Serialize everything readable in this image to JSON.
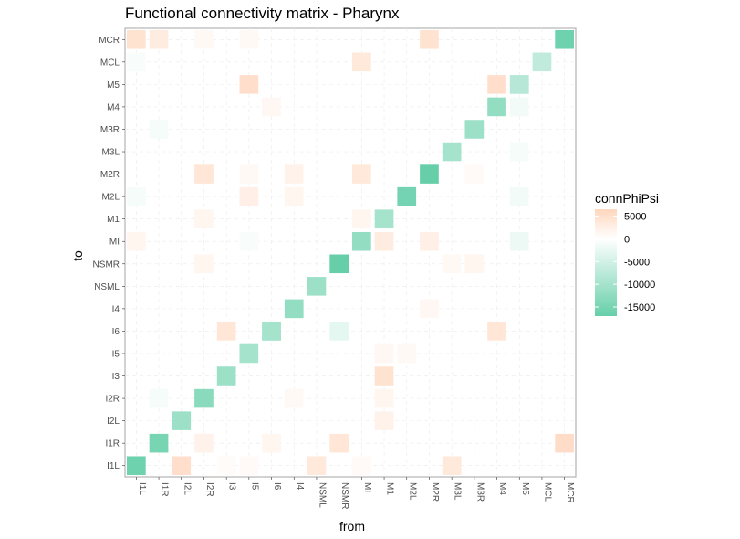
{
  "chart_data": {
    "type": "heatmap",
    "title": "Functional connectivity matrix - Pharynx",
    "xlabel": "from",
    "ylabel": "to",
    "x_categories": [
      "I1L",
      "I1R",
      "I2L",
      "I2R",
      "I3",
      "I5",
      "I6",
      "I4",
      "NSML",
      "NSMR",
      "MI",
      "M1",
      "M2L",
      "M2R",
      "M3L",
      "M3R",
      "M4",
      "M5",
      "MCL",
      "MCR"
    ],
    "y_categories": [
      "I1L",
      "I1R",
      "I2L",
      "I2R",
      "I3",
      "I5",
      "I6",
      "I4",
      "NSML",
      "NSMR",
      "MI",
      "M1",
      "M2L",
      "M2R",
      "M3L",
      "M3R",
      "M4",
      "M5",
      "MCL",
      "MCR"
    ],
    "color_scale": {
      "name": "connPhiPsi",
      "range": [
        -17000,
        6500
      ],
      "ticks": [
        5000,
        0,
        -5000,
        -10000,
        -15000
      ],
      "tick_labels": [
        "5000",
        "0",
        "-5000",
        "-10000",
        "-15000"
      ],
      "colors": {
        "high": "#ffd6bd",
        "mid": "#ffffff",
        "low": "#66cfaa"
      }
    },
    "cells": [
      {
        "x": "I1L",
        "y": "I1L",
        "v": -16000
      },
      {
        "x": "I1R",
        "y": "I1R",
        "v": -15000
      },
      {
        "x": "I2L",
        "y": "I2L",
        "v": -11000
      },
      {
        "x": "I2R",
        "y": "I2R",
        "v": -13000
      },
      {
        "x": "I3",
        "y": "I3",
        "v": -11000
      },
      {
        "x": "I5",
        "y": "I5",
        "v": -10000
      },
      {
        "x": "I6",
        "y": "I6",
        "v": -10000
      },
      {
        "x": "I4",
        "y": "I4",
        "v": -12000
      },
      {
        "x": "NSML",
        "y": "NSML",
        "v": -11000
      },
      {
        "x": "NSMR",
        "y": "NSMR",
        "v": -17000
      },
      {
        "x": "MI",
        "y": "MI",
        "v": -12000
      },
      {
        "x": "M1",
        "y": "M1",
        "v": -10000
      },
      {
        "x": "M2L",
        "y": "M2L",
        "v": -15500
      },
      {
        "x": "M2R",
        "y": "M2R",
        "v": -17000
      },
      {
        "x": "M3L",
        "y": "M3L",
        "v": -10000
      },
      {
        "x": "M3R",
        "y": "M3R",
        "v": -11000
      },
      {
        "x": "M4",
        "y": "M4",
        "v": -12000
      },
      {
        "x": "M5",
        "y": "M5",
        "v": -8000
      },
      {
        "x": "MCL",
        "y": "MCL",
        "v": -7000
      },
      {
        "x": "MCR",
        "y": "MCR",
        "v": -16000
      },
      {
        "x": "I2L",
        "y": "I1L",
        "v": 5000
      },
      {
        "x": "NSML",
        "y": "I1L",
        "v": 3500
      },
      {
        "x": "M3L",
        "y": "I1L",
        "v": 3500
      },
      {
        "x": "MCR",
        "y": "I1R",
        "v": 5500
      },
      {
        "x": "NSMR",
        "y": "I1R",
        "v": 4000
      },
      {
        "x": "I2R",
        "y": "I1R",
        "v": 2000
      },
      {
        "x": "I6",
        "y": "I1R",
        "v": 1500
      },
      {
        "x": "M1",
        "y": "I2L",
        "v": 2000
      },
      {
        "x": "M1",
        "y": "I3",
        "v": 4500
      },
      {
        "x": "I5",
        "y": "MCR",
        "v": 1000
      },
      {
        "x": "I6",
        "y": "I6",
        "v": -10000
      },
      {
        "x": "I3",
        "y": "I6",
        "v": 4000
      },
      {
        "x": "NSMR",
        "y": "I6",
        "v": -3000
      },
      {
        "x": "M4",
        "y": "I6",
        "v": 4000
      },
      {
        "x": "I2R",
        "y": "NSMR",
        "v": 1500
      },
      {
        "x": "M3L",
        "y": "NSMR",
        "v": 1000
      },
      {
        "x": "M3R",
        "y": "NSMR",
        "v": 1500
      },
      {
        "x": "M1",
        "y": "MI",
        "v": 3000
      },
      {
        "x": "M2R",
        "y": "MI",
        "v": 2500
      },
      {
        "x": "I2R",
        "y": "M1",
        "v": 1500
      },
      {
        "x": "MI",
        "y": "M1",
        "v": 1500
      },
      {
        "x": "I5",
        "y": "M2L",
        "v": 2500
      },
      {
        "x": "I4",
        "y": "M2L",
        "v": 1500
      },
      {
        "x": "M5",
        "y": "M2L",
        "v": -1500
      },
      {
        "x": "I2R",
        "y": "M2R",
        "v": 4000
      },
      {
        "x": "I4",
        "y": "M2R",
        "v": 2000
      },
      {
        "x": "MI",
        "y": "M2R",
        "v": 3500
      },
      {
        "x": "I5",
        "y": "M2R",
        "v": 1000
      },
      {
        "x": "M3R",
        "y": "M2R",
        "v": 800
      },
      {
        "x": "M5",
        "y": "M3L",
        "v": -1000
      },
      {
        "x": "I1R",
        "y": "M3R",
        "v": -1000
      },
      {
        "x": "M5",
        "y": "M4",
        "v": -1500
      },
      {
        "x": "I6",
        "y": "M4",
        "v": 1200
      },
      {
        "x": "I5",
        "y": "M5",
        "v": 5000
      },
      {
        "x": "M4",
        "y": "M5",
        "v": 5000
      },
      {
        "x": "M5",
        "y": "M5",
        "v": -8000
      },
      {
        "x": "MI",
        "y": "MCL",
        "v": 3500
      },
      {
        "x": "I1L",
        "y": "MCL",
        "v": -800
      },
      {
        "x": "I1L",
        "y": "MCR",
        "v": 4500
      },
      {
        "x": "I1R",
        "y": "MCR",
        "v": 3000
      },
      {
        "x": "I2R",
        "y": "MCR",
        "v": 1000
      },
      {
        "x": "M2R",
        "y": "MCR",
        "v": 4500
      },
      {
        "x": "M1",
        "y": "I2R",
        "v": 1500
      },
      {
        "x": "I4",
        "y": "I2R",
        "v": 1000
      },
      {
        "x": "I1R",
        "y": "I2R",
        "v": -1000
      },
      {
        "x": "M1",
        "y": "I5",
        "v": 1200
      },
      {
        "x": "M2L",
        "y": "I5",
        "v": 1000
      },
      {
        "x": "M2R",
        "y": "I4",
        "v": 1200
      },
      {
        "x": "I1L",
        "y": "M2L",
        "v": -1000
      },
      {
        "x": "I1L",
        "y": "MI",
        "v": 1500
      },
      {
        "x": "I5",
        "y": "MI",
        "v": -800
      },
      {
        "x": "M5",
        "y": "MI",
        "v": -2000
      },
      {
        "x": "MI",
        "y": "I1L",
        "v": 800
      },
      {
        "x": "I3",
        "y": "I1L",
        "v": 600
      },
      {
        "x": "I5",
        "y": "I1L",
        "v": 800
      }
    ]
  }
}
